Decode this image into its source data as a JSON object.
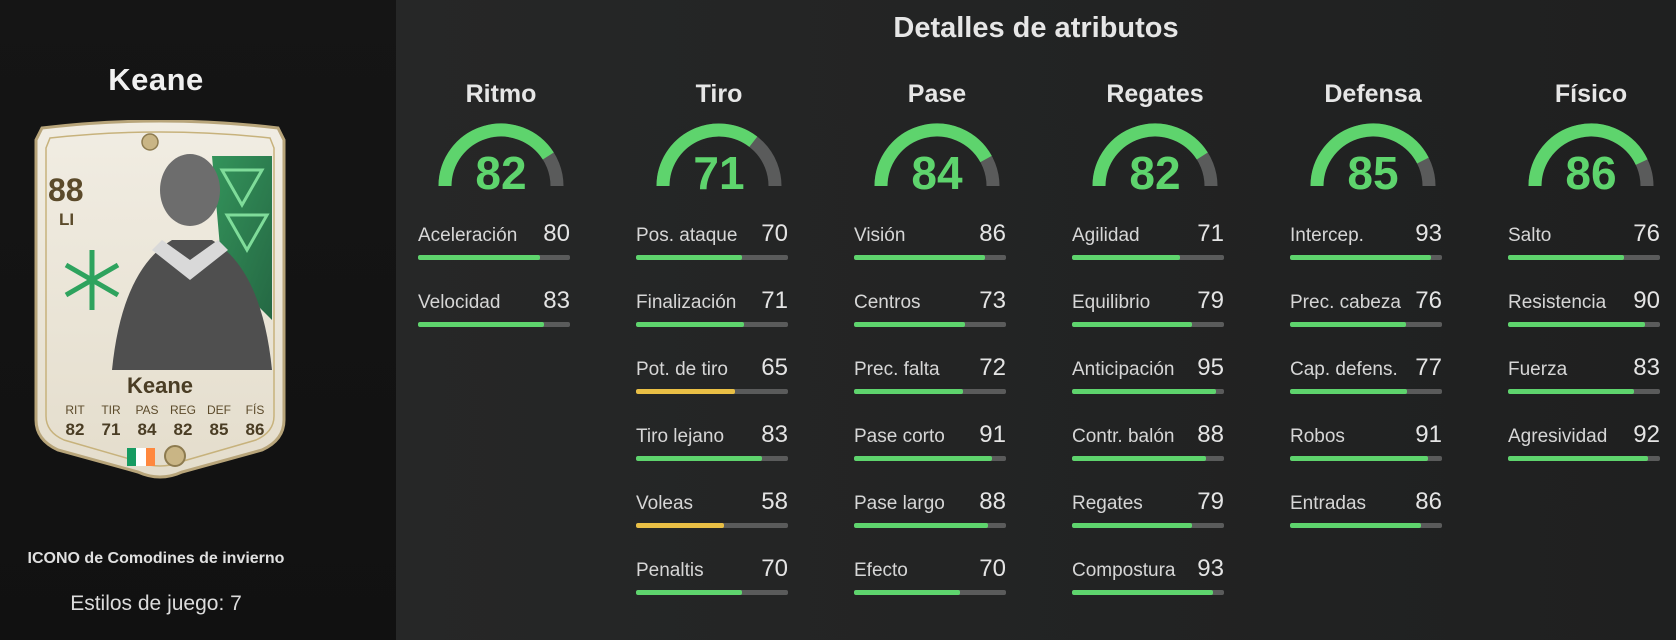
{
  "player": {
    "name": "Keane",
    "card_type": "ICONO de Comodines de invierno",
    "playstyles": "Estilos de juego: 7"
  },
  "card": {
    "rating": "88",
    "position": "LI",
    "name": "Keane",
    "stats": [
      {
        "label": "RIT",
        "value": "82"
      },
      {
        "label": "TIR",
        "value": "71"
      },
      {
        "label": "PAS",
        "value": "84"
      },
      {
        "label": "REG",
        "value": "82"
      },
      {
        "label": "DEF",
        "value": "85"
      },
      {
        "label": "FÍS",
        "value": "86"
      }
    ],
    "flag_colors": [
      "#169b62",
      "#ffffff",
      "#ff883e"
    ]
  },
  "main": {
    "title": "Detalles de atributos"
  },
  "colors": {
    "high": "#5ed46d",
    "mid": "#e9bf45",
    "track": "#5a5b5b"
  },
  "categories": [
    {
      "title": "Ritmo",
      "value": "82",
      "attributes": [
        {
          "name": "Aceleración",
          "value": "80"
        },
        {
          "name": "Velocidad",
          "value": "83"
        }
      ]
    },
    {
      "title": "Tiro",
      "value": "71",
      "attributes": [
        {
          "name": "Pos. ataque",
          "value": "70"
        },
        {
          "name": "Finalización",
          "value": "71"
        },
        {
          "name": "Pot. de tiro",
          "value": "65"
        },
        {
          "name": "Tiro lejano",
          "value": "83"
        },
        {
          "name": "Voleas",
          "value": "58"
        },
        {
          "name": "Penaltis",
          "value": "70"
        }
      ]
    },
    {
      "title": "Pase",
      "value": "84",
      "attributes": [
        {
          "name": "Visión",
          "value": "86"
        },
        {
          "name": "Centros",
          "value": "73"
        },
        {
          "name": "Prec. falta",
          "value": "72"
        },
        {
          "name": "Pase corto",
          "value": "91"
        },
        {
          "name": "Pase largo",
          "value": "88"
        },
        {
          "name": "Efecto",
          "value": "70"
        }
      ]
    },
    {
      "title": "Regates",
      "value": "82",
      "attributes": [
        {
          "name": "Agilidad",
          "value": "71"
        },
        {
          "name": "Equilibrio",
          "value": "79"
        },
        {
          "name": "Anticipación",
          "value": "95"
        },
        {
          "name": "Contr. balón",
          "value": "88"
        },
        {
          "name": "Regates",
          "value": "79"
        },
        {
          "name": "Compostura",
          "value": "93"
        }
      ]
    },
    {
      "title": "Defensa",
      "value": "85",
      "attributes": [
        {
          "name": "Intercep.",
          "value": "93"
        },
        {
          "name": "Prec. cabeza",
          "value": "76"
        },
        {
          "name": "Cap. defens.",
          "value": "77"
        },
        {
          "name": "Robos",
          "value": "91"
        },
        {
          "name": "Entradas",
          "value": "86"
        }
      ]
    },
    {
      "title": "Físico",
      "value": "86",
      "attributes": [
        {
          "name": "Salto",
          "value": "76"
        },
        {
          "name": "Resistencia",
          "value": "90"
        },
        {
          "name": "Fuerza",
          "value": "83"
        },
        {
          "name": "Agresividad",
          "value": "92"
        }
      ]
    }
  ]
}
